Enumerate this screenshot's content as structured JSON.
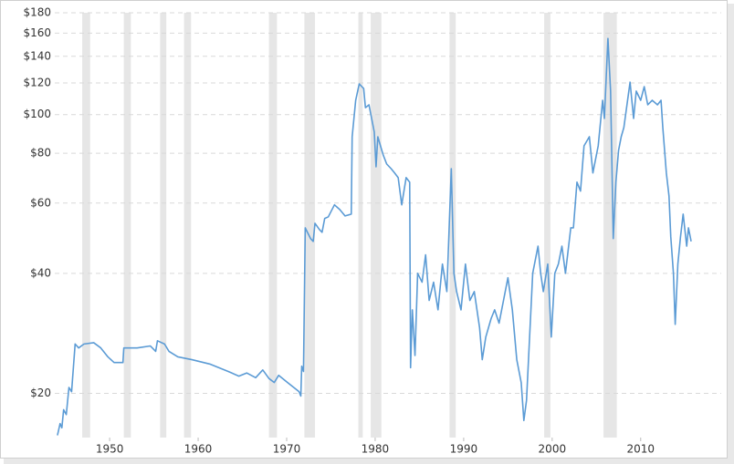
{
  "chart_data": {
    "type": "line",
    "log_y": true,
    "grid": true,
    "xlim": [
      1943.8,
      2019.1
    ],
    "ylim": [
      15.5,
      180
    ],
    "xticks": [
      1950,
      1960,
      1970,
      1980,
      1990,
      2000,
      2010
    ],
    "yticks": [
      {
        "value": 20,
        "label": "$20"
      },
      {
        "value": 40,
        "label": "$40"
      },
      {
        "value": 60,
        "label": "$60"
      },
      {
        "value": 80,
        "label": "$80"
      },
      {
        "value": 100,
        "label": "$100"
      },
      {
        "value": 120,
        "label": "$120"
      },
      {
        "value": 140,
        "label": "$140"
      },
      {
        "value": 160,
        "label": "$160"
      },
      {
        "value": 180,
        "label": "$180"
      }
    ],
    "recession_color": "#e6e6e6",
    "recessions": [
      [
        1946.9,
        1947.8
      ],
      [
        1951.6,
        1952.4
      ],
      [
        1955.7,
        1956.4
      ],
      [
        1958.4,
        1959.2
      ],
      [
        1968.0,
        1968.9
      ],
      [
        1972.0,
        1973.2
      ],
      [
        1978.1,
        1978.6
      ],
      [
        1979.5,
        1980.7
      ],
      [
        1988.4,
        1989.1
      ],
      [
        1999.1,
        1999.8
      ],
      [
        2005.8,
        2007.3
      ]
    ],
    "series": [
      {
        "color": "#5b9bd5",
        "x": [
          1944.1,
          1944.4,
          1944.6,
          1944.8,
          1945.1,
          1945.4,
          1945.7,
          1946.1,
          1946.5,
          1947.1,
          1948.2,
          1949.0,
          1949.8,
          1950.5,
          1951.5,
          1951.6,
          1953.1,
          1954.6,
          1955.2,
          1955.4,
          1956.2,
          1956.7,
          1957.7,
          1959.3,
          1961.3,
          1963.4,
          1964.6,
          1965.5,
          1966.5,
          1967.3,
          1968.0,
          1968.6,
          1969.1,
          1970.1,
          1971.4,
          1971.6,
          1971.7,
          1971.9,
          1972.1,
          1972.7,
          1973.0,
          1973.2,
          1973.7,
          1974.0,
          1974.3,
          1974.7,
          1975.4,
          1976.0,
          1976.6,
          1977.3,
          1977.4,
          1977.8,
          1978.2,
          1978.7,
          1978.9,
          1979.3,
          1979.6,
          1979.9,
          1980.1,
          1980.3,
          1980.6,
          1980.9,
          1981.3,
          1981.8,
          1982.2,
          1982.6,
          1983.0,
          1983.5,
          1983.9,
          1984.0,
          1984.2,
          1984.5,
          1984.8,
          1985.3,
          1985.7,
          1986.1,
          1986.6,
          1987.1,
          1987.6,
          1988.1,
          1988.6,
          1988.9,
          1989.2,
          1989.7,
          1990.2,
          1990.7,
          1991.2,
          1991.8,
          1992.1,
          1992.5,
          1993.1,
          1993.5,
          1994.0,
          1994.5,
          1995.0,
          1995.5,
          1996.0,
          1996.5,
          1996.8,
          1997.1,
          1997.4,
          1997.8,
          1998.4,
          1998.7,
          1999.0,
          1999.5,
          1999.9,
          2000.3,
          2000.7,
          2001.1,
          2001.5,
          2002.1,
          2002.4,
          2002.8,
          2003.2,
          2003.6,
          2004.2,
          2004.6,
          2005.2,
          2005.7,
          2005.9,
          2006.3,
          2006.6,
          2006.9,
          2007.2,
          2007.5,
          2007.8,
          2008.1,
          2008.8,
          2009.2,
          2009.5,
          2010.0,
          2010.4,
          2010.8,
          2011.3,
          2011.9,
          2012.3,
          2012.5,
          2012.9,
          2013.2,
          2013.4,
          2013.7,
          2013.9,
          2014.2,
          2014.5,
          2014.8,
          2015.2,
          2015.4,
          2015.7
        ],
        "values": [
          15.7,
          16.8,
          16.4,
          18.2,
          17.7,
          20.7,
          20.2,
          26.6,
          26.0,
          26.6,
          26.8,
          26.0,
          24.7,
          23.9,
          23.9,
          26.0,
          26.0,
          26.3,
          25.5,
          27.1,
          26.6,
          25.5,
          24.7,
          24.3,
          23.7,
          22.7,
          22.1,
          22.5,
          21.9,
          22.9,
          21.8,
          21.3,
          22.2,
          21.3,
          20.2,
          19.7,
          23.4,
          22.7,
          52.0,
          48.9,
          48.1,
          53.4,
          51.5,
          50.7,
          54.9,
          55.4,
          59.4,
          57.8,
          55.7,
          56.3,
          88.0,
          108.6,
          119.4,
          116.3,
          104.1,
          105.8,
          97.8,
          90.4,
          74.0,
          88.0,
          83.5,
          79.3,
          75.2,
          73.2,
          71.4,
          69.5,
          59.4,
          69.5,
          67.7,
          23.2,
          32.4,
          24.9,
          40.0,
          38.0,
          44.5,
          34.2,
          38.0,
          32.4,
          42.2,
          36.0,
          73.2,
          40.0,
          36.0,
          32.4,
          42.2,
          34.2,
          36.0,
          29.2,
          24.3,
          27.7,
          30.8,
          32.4,
          30.0,
          34.2,
          39.0,
          32.4,
          24.3,
          21.3,
          17.1,
          19.2,
          26.3,
          40.0,
          46.8,
          40.0,
          36.0,
          42.2,
          27.7,
          40.0,
          42.2,
          46.8,
          40.0,
          52.0,
          52.0,
          67.7,
          64.3,
          83.5,
          88.0,
          71.4,
          83.5,
          108.6,
          97.8,
          155.2,
          114.5,
          48.9,
          67.7,
          81.3,
          88.0,
          92.8,
          120.6,
          97.8,
          114.5,
          108.6,
          117.5,
          105.8,
          108.6,
          105.8,
          108.6,
          92.8,
          71.4,
          62.5,
          49.4,
          40.0,
          29.8,
          42.2,
          49.4,
          56.3,
          46.8,
          52.0,
          48.1
        ]
      }
    ]
  }
}
